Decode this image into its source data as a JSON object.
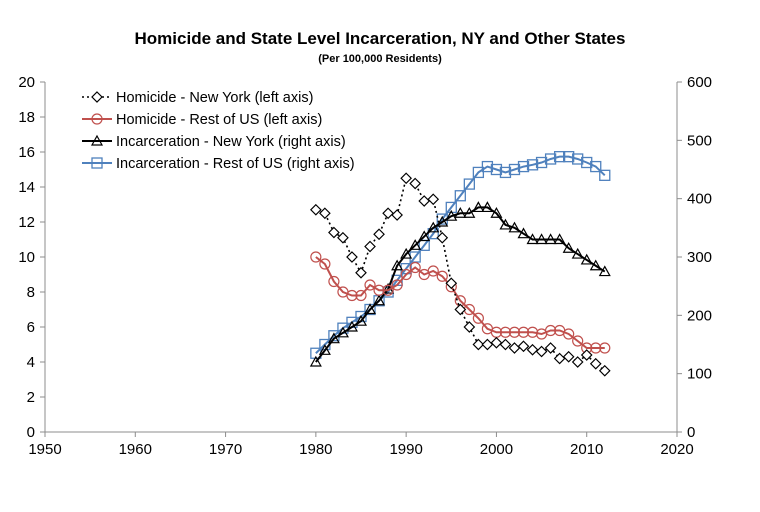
{
  "chart_data": {
    "type": "line",
    "title": "Homicide and State Level Incarceration, NY and Other States",
    "subtitle": "(Per 100,000 Residents)",
    "xlim": [
      1950,
      2020
    ],
    "x_ticks": [
      1950,
      1960,
      1970,
      1980,
      1990,
      2000,
      2010,
      2020
    ],
    "ylim_left": [
      0,
      20
    ],
    "y_ticks_left": [
      0,
      2,
      4,
      6,
      8,
      10,
      12,
      14,
      16,
      18,
      20
    ],
    "ylim_right": [
      0,
      600
    ],
    "y_ticks_right": [
      0,
      100,
      200,
      300,
      400,
      500,
      600
    ],
    "grid": false,
    "legend": "top-left",
    "x": [
      1980,
      1981,
      1982,
      1983,
      1984,
      1985,
      1986,
      1987,
      1988,
      1989,
      1990,
      1991,
      1992,
      1993,
      1994,
      1995,
      1996,
      1997,
      1998,
      1999,
      2000,
      2001,
      2002,
      2003,
      2004,
      2005,
      2006,
      2007,
      2008,
      2009,
      2010,
      2011,
      2012
    ],
    "series": [
      {
        "name": "Homicide - New York (left axis)",
        "axis": "left",
        "color": "#000000",
        "marker": "diamond",
        "line": "dotted",
        "values": [
          12.7,
          12.5,
          11.4,
          11.1,
          10.0,
          9.1,
          10.6,
          11.3,
          12.5,
          12.4,
          14.5,
          14.2,
          13.2,
          13.3,
          11.1,
          8.5,
          7.0,
          6.0,
          5.0,
          5.0,
          5.1,
          5.0,
          4.8,
          4.9,
          4.7,
          4.6,
          4.8,
          4.2,
          4.3,
          4.0,
          4.4,
          3.9,
          3.5
        ]
      },
      {
        "name": "Homicide - Rest of US (left axis)",
        "axis": "left",
        "color": "#c0504d",
        "marker": "circle",
        "line": "solid",
        "values": [
          10.0,
          9.6,
          8.6,
          8.0,
          7.8,
          7.8,
          8.4,
          8.1,
          8.1,
          8.4,
          9.0,
          9.4,
          9.0,
          9.2,
          8.9,
          8.3,
          7.5,
          7.0,
          6.5,
          5.9,
          5.7,
          5.7,
          5.7,
          5.7,
          5.7,
          5.6,
          5.8,
          5.8,
          5.6,
          5.2,
          4.8,
          4.8,
          4.8
        ]
      },
      {
        "name": "Incarceration - New York (right axis)",
        "axis": "right",
        "color": "#000000",
        "marker": "triangle",
        "line": "solid",
        "values": [
          120,
          140,
          160,
          170,
          180,
          190,
          210,
          225,
          245,
          285,
          305,
          320,
          335,
          350,
          360,
          370,
          375,
          375,
          385,
          385,
          375,
          355,
          350,
          340,
          330,
          330,
          330,
          330,
          315,
          305,
          295,
          285,
          275
        ]
      },
      {
        "name": "Incarceration - Rest of US (right axis)",
        "axis": "right",
        "color": "#4f81bd",
        "marker": "square",
        "line": "solid",
        "values": [
          135,
          150,
          165,
          178,
          188,
          198,
          210,
          225,
          240,
          260,
          280,
          300,
          320,
          340,
          365,
          385,
          405,
          425,
          445,
          455,
          450,
          445,
          450,
          455,
          458,
          462,
          468,
          472,
          472,
          468,
          462,
          455,
          440
        ]
      }
    ]
  }
}
